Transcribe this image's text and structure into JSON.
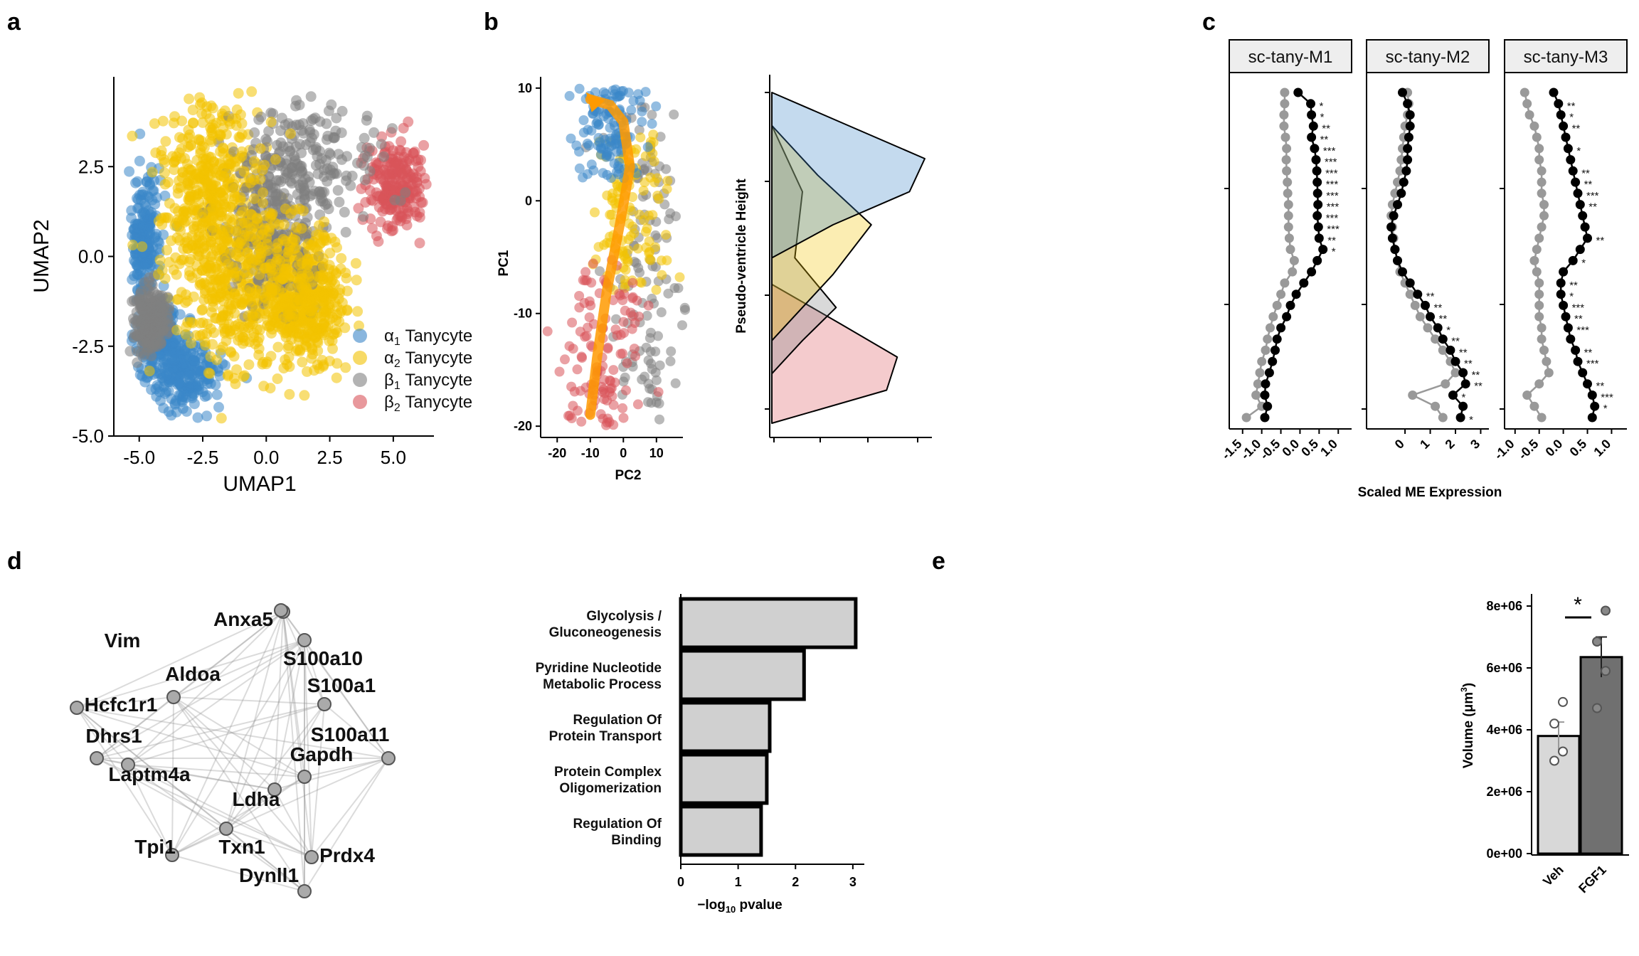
{
  "panels": {
    "a": "a",
    "b": "b",
    "c": "c",
    "d": "d",
    "e": "e"
  },
  "colors": {
    "alpha1": "#3a86c8",
    "alpha2": "#f2c200",
    "beta1": "#808080",
    "beta2": "#d9545a",
    "arrow": "#ff9a00"
  },
  "chart_data": [
    {
      "panel": "a",
      "type": "scatter",
      "xlabel": "UMAP1",
      "ylabel": "UMAP2",
      "xlim": [
        -6,
        6.6
      ],
      "ylim": [
        -5,
        5
      ],
      "xticks": [
        "-5.0",
        "-2.5",
        "0.0",
        "2.5",
        "5.0"
      ],
      "yticks": [
        "-5.0",
        "-2.5",
        "0.0",
        "2.5"
      ],
      "legend_position": "right",
      "series": [
        {
          "name": "α1 Tanycyte",
          "name_base": "α",
          "name_sub": "1",
          "name_rest": " Tanycyte",
          "color": "#3a86c8",
          "regions": [
            [
              -4.8,
              0.5,
              0.6,
              1.6
            ],
            [
              -3.2,
              -3.3,
              1.4,
              0.9
            ],
            [
              -4.2,
              -2.2,
              0.8,
              0.9
            ]
          ]
        },
        {
          "name": "α2 Tanycyte",
          "name_base": "α",
          "name_sub": "2",
          "name_rest": " Tanycyte",
          "color": "#f2c200",
          "regions": [
            [
              -2.2,
              1.8,
              1.9,
              2.4
            ],
            [
              -1.0,
              -0.8,
              2.2,
              2.3
            ],
            [
              1.6,
              -1.2,
              1.5,
              1.6
            ]
          ]
        },
        {
          "name": "β1 Tanycyte",
          "name_base": "β",
          "name_sub": "1",
          "name_rest": " Tanycyte",
          "color": "#808080",
          "regions": [
            [
              1.6,
              2.6,
              2.4,
              1.5
            ],
            [
              0.3,
              0.4,
              1.6,
              1.8
            ],
            [
              -4.6,
              -1.8,
              0.6,
              0.8
            ]
          ]
        },
        {
          "name": "β2 Tanycyte",
          "name_base": "β",
          "name_sub": "2",
          "name_rest": " Tanycyte",
          "color": "#d9545a",
          "regions": [
            [
              5.1,
              2.0,
              1.1,
              1.1
            ]
          ]
        }
      ]
    },
    {
      "panel": "b-left",
      "type": "scatter",
      "xlabel": "PC2",
      "ylabel": "PC1",
      "xlim": [
        -25,
        18
      ],
      "ylim": [
        -21,
        11
      ],
      "xticks": [
        -20,
        -10,
        0,
        10
      ],
      "yticks": [
        10,
        0,
        -10,
        -20
      ],
      "series": [
        {
          "name": "α1 Tanycyte",
          "color": "#3a86c8",
          "y_range": [
            2,
            10
          ],
          "x_center": -3
        },
        {
          "name": "α2 Tanycyte",
          "color": "#f2c200",
          "y_range": [
            -8,
            6
          ],
          "x_center": 2
        },
        {
          "name": "β1 Tanycyte",
          "color": "#808080",
          "y_range": [
            -20,
            9
          ],
          "x_center": 6
        },
        {
          "name": "β2 Tanycyte",
          "color": "#d9545a",
          "y_range": [
            -20,
            -5
          ],
          "x_center": -6
        }
      ],
      "trajectory": {
        "x": [
          -10,
          -8,
          -5,
          -1,
          2,
          0,
          -4,
          -10
        ],
        "y": [
          -19,
          -14,
          -8,
          -2,
          3,
          7,
          8.5,
          9
        ]
      }
    },
    {
      "panel": "b-right",
      "type": "area",
      "ylabel": "Pseudo-ventricle Height",
      "series": [
        {
          "name": "α1 Tanycyte",
          "color": "#3a86c8",
          "y": [
            1.0,
            0.9,
            0.8,
            0.7,
            0.6,
            0.5
          ],
          "density": [
            0.0,
            0.5,
            1.0,
            0.9,
            0.4,
            0.0
          ]
        },
        {
          "name": "α2 Tanycyte",
          "color": "#f2c200",
          "y": [
            0.9,
            0.75,
            0.6,
            0.45,
            0.35,
            0.25
          ],
          "density": [
            0.0,
            0.3,
            0.65,
            0.4,
            0.2,
            0.0
          ]
        },
        {
          "name": "β1 Tanycyte",
          "color": "#808080",
          "y": [
            0.9,
            0.7,
            0.5,
            0.35,
            0.25,
            0.15
          ],
          "density": [
            0.0,
            0.2,
            0.15,
            0.42,
            0.2,
            0.0
          ]
        },
        {
          "name": "β2 Tanycyte",
          "color": "#d9545a",
          "y": [
            0.42,
            0.3,
            0.2,
            0.1,
            0.0
          ],
          "density": [
            0.0,
            0.45,
            0.82,
            0.75,
            0.0
          ]
        }
      ]
    },
    {
      "panel": "c",
      "type": "line",
      "xlabel": "Scaled ME Expression",
      "facets": [
        {
          "label": "sc-tany-M1",
          "xlim": [
            -1.7,
            1.2
          ],
          "xticks": [
            "-1.5",
            "-1.0",
            "-0.5",
            "0.0",
            "0.5",
            "1.0"
          ],
          "xtick_values": [
            -1.5,
            -1.0,
            -0.5,
            0.0,
            0.5,
            1.0
          ],
          "black": [
            -0.05,
            0.28,
            0.3,
            0.35,
            0.3,
            0.38,
            0.42,
            0.44,
            0.45,
            0.46,
            0.47,
            0.45,
            0.48,
            0.5,
            0.6,
            0.45,
            0.3,
            0.1,
            -0.1,
            -0.25,
            -0.35,
            -0.5,
            -0.6,
            -0.65,
            -0.72,
            -0.8,
            -0.9,
            -0.92,
            -0.85,
            -0.92
          ],
          "gray": [
            -0.4,
            -0.4,
            -0.42,
            -0.42,
            -0.38,
            -0.35,
            -0.36,
            -0.35,
            -0.33,
            -0.32,
            -0.3,
            -0.3,
            -0.3,
            -0.28,
            -0.25,
            -0.15,
            -0.2,
            -0.4,
            -0.5,
            -0.6,
            -0.7,
            -0.78,
            -0.85,
            -0.9,
            -1.0,
            -1.05,
            -1.1,
            -1.15,
            -1.0,
            -1.4
          ],
          "stars": [
            "",
            "*",
            "*",
            "**",
            "**",
            "***",
            "***",
            "***",
            "***",
            "***",
            "***",
            "***",
            "***",
            "**",
            "*",
            "",
            "",
            "",
            "",
            "",
            "",
            "",
            "",
            "",
            "",
            "",
            "",
            "",
            "",
            ""
          ]
        },
        {
          "label": "sc-tany-M2",
          "xlim": [
            -1.3,
            3.1
          ],
          "xticks": [
            "0",
            "1",
            "2",
            "3"
          ],
          "xtick_values": [
            0,
            1,
            2,
            3
          ],
          "black": [
            -0.1,
            0.1,
            0.2,
            0.2,
            0.15,
            0.1,
            0.1,
            0.05,
            -0.05,
            -0.15,
            -0.3,
            -0.45,
            -0.55,
            -0.5,
            -0.4,
            -0.3,
            -0.1,
            0.2,
            0.5,
            0.8,
            1.0,
            1.3,
            1.5,
            1.8,
            2.0,
            2.3,
            2.4,
            1.9,
            2.3,
            2.2
          ],
          "gray": [
            0.1,
            0.15,
            0.1,
            0.0,
            -0.05,
            -0.1,
            -0.15,
            -0.2,
            -0.3,
            -0.4,
            -0.5,
            -0.55,
            -0.5,
            -0.45,
            -0.4,
            -0.3,
            -0.2,
            0.0,
            0.2,
            0.4,
            0.6,
            0.9,
            1.2,
            1.5,
            1.8,
            2.0,
            1.6,
            0.3,
            1.2,
            1.5
          ],
          "stars": [
            "",
            "",
            "",
            "",
            "",
            "",
            "",
            "",
            "",
            "",
            "",
            "",
            "",
            "",
            "",
            "",
            "",
            "",
            "**",
            "**",
            "**",
            "*",
            "**",
            "**",
            "**",
            "**",
            "**",
            "*",
            "",
            "*"
          ]
        },
        {
          "label": "sc-tany-M3",
          "xlim": [
            -1.1,
            1.2
          ],
          "xticks": [
            "-1.0",
            "-0.5",
            "0.0",
            "0.5",
            "1.0"
          ],
          "xtick_values": [
            -1.0,
            -0.5,
            0.0,
            0.5,
            1.0
          ],
          "black": [
            -0.2,
            -0.1,
            -0.05,
            0.0,
            0.05,
            0.1,
            0.15,
            0.2,
            0.25,
            0.3,
            0.35,
            0.4,
            0.45,
            0.5,
            0.35,
            0.2,
            0.0,
            -0.05,
            -0.05,
            0.0,
            0.05,
            0.1,
            0.15,
            0.25,
            0.3,
            0.4,
            0.5,
            0.6,
            0.65,
            0.6
          ],
          "gray": [
            -0.8,
            -0.75,
            -0.7,
            -0.6,
            -0.55,
            -0.5,
            -0.5,
            -0.45,
            -0.45,
            -0.45,
            -0.4,
            -0.4,
            -0.45,
            -0.5,
            -0.55,
            -0.6,
            -0.55,
            -0.5,
            -0.5,
            -0.5,
            -0.5,
            -0.45,
            -0.45,
            -0.4,
            -0.35,
            -0.3,
            -0.5,
            -0.75,
            -0.6,
            -0.45
          ],
          "stars": [
            "",
            "**",
            "*",
            "**",
            "",
            "*",
            "",
            "**",
            "**",
            "***",
            "**",
            "",
            "",
            "**",
            "",
            "*",
            "",
            "**",
            "*",
            "***",
            "**",
            "***",
            "",
            "**",
            "***",
            "",
            "**",
            "***",
            "*",
            ""
          ]
        }
      ]
    },
    {
      "panel": "d-network",
      "type": "table",
      "nodes": [
        {
          "label": "Vim",
          "color": "#ff0000"
        },
        {
          "label": "Anxa5"
        },
        {
          "label": "S100a10"
        },
        {
          "label": "Aldoa"
        },
        {
          "label": "S100a1"
        },
        {
          "label": "Hcfc1r1"
        },
        {
          "label": "S100a11"
        },
        {
          "label": "Dhrs1"
        },
        {
          "label": "Gapdh"
        },
        {
          "label": "Laptm4a"
        },
        {
          "label": "Ldha"
        },
        {
          "label": "Tpi1"
        },
        {
          "label": "Txn1"
        },
        {
          "label": "Prdx4"
        },
        {
          "label": "Dynll1"
        }
      ]
    },
    {
      "panel": "d-bar",
      "type": "bar",
      "xlabel_prefix": "−log",
      "xlabel_sub": "10",
      "xlabel_suffix": " pvalue",
      "xlim": [
        0,
        3.2
      ],
      "xticks": [
        0,
        1,
        2,
        3
      ],
      "categories": [
        [
          "Glycolysis /",
          "Gluconeogenesis"
        ],
        [
          "Pyridine Nucleotide",
          "Metabolic Process"
        ],
        [
          "Regulation Of",
          "Protein Transport"
        ],
        [
          "Protein Complex",
          "Oligomerization"
        ],
        [
          "Regulation Of",
          "Binding"
        ]
      ],
      "values": [
        3.05,
        2.15,
        1.55,
        1.5,
        1.4
      ]
    },
    {
      "panel": "e",
      "type": "bar",
      "ylabel_prefix": "Volume (",
      "ylabel_unit": "μm",
      "ylabel_sup": "3",
      "ylabel_suffix": ")",
      "ylim": [
        0,
        8500000
      ],
      "yticks": [
        "0e+00",
        "2e+06",
        "4e+06",
        "6e+06",
        "8e+06"
      ],
      "ytick_values": [
        0,
        2000000,
        4000000,
        6000000,
        8000000
      ],
      "categories": [
        "Veh",
        "FGF1"
      ],
      "values": [
        3800000,
        6350000
      ],
      "errors": [
        450000,
        650000
      ],
      "points": [
        [
          3000000,
          3300000,
          4200000,
          4900000
        ],
        [
          4700000,
          5900000,
          6850000,
          7850000
        ]
      ],
      "fills": [
        "#d8d8d8",
        "#707070"
      ],
      "significance": "*"
    }
  ]
}
